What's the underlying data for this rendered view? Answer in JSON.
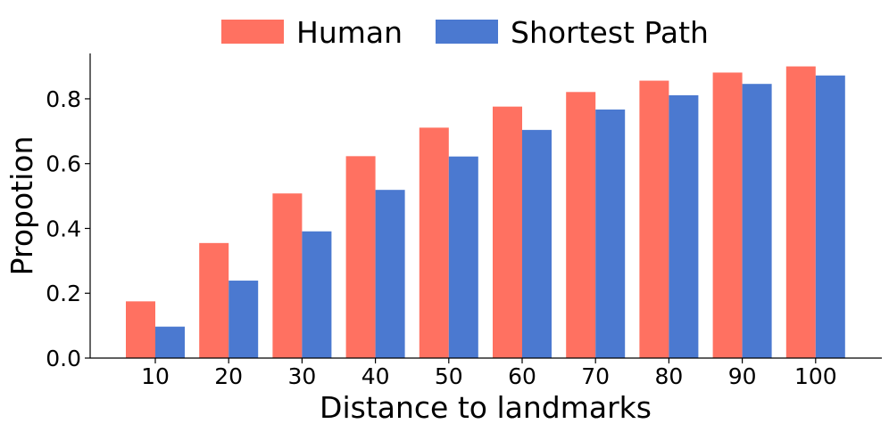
{
  "chart_data": {
    "type": "bar",
    "title": "",
    "xlabel": "Distance to landmarks",
    "ylabel": "Propotion",
    "categories": [
      "10",
      "20",
      "30",
      "40",
      "50",
      "60",
      "70",
      "80",
      "90",
      "100"
    ],
    "series": [
      {
        "name": "Human",
        "color": "#FF7161",
        "values": [
          0.175,
          0.355,
          0.508,
          0.623,
          0.711,
          0.776,
          0.821,
          0.856,
          0.881,
          0.9
        ]
      },
      {
        "name": "Shortest Path",
        "color": "#4B79D0",
        "values": [
          0.097,
          0.239,
          0.391,
          0.519,
          0.622,
          0.704,
          0.767,
          0.811,
          0.846,
          0.872
        ]
      }
    ],
    "ylim": [
      0,
      0.94
    ],
    "yticks": [
      "0.0",
      "0.2",
      "0.4",
      "0.6",
      "0.8"
    ],
    "legend": "top-center",
    "grid": false
  }
}
